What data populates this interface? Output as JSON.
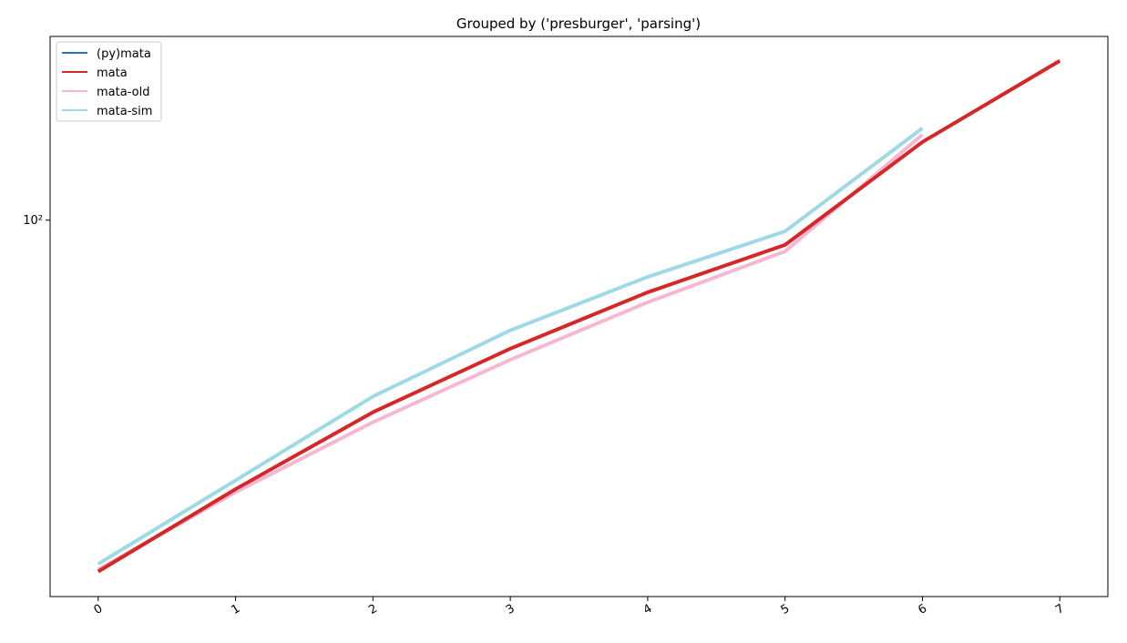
{
  "chart_data": {
    "type": "line",
    "title": "Grouped by ('presburger', 'parsing')",
    "x": [
      0,
      1,
      2,
      3,
      4,
      5,
      6,
      7
    ],
    "xlim": [
      -0.35,
      7.35
    ],
    "xticks": [
      0,
      1,
      2,
      3,
      4,
      5,
      6,
      7
    ],
    "ylim": [
      30,
      180
    ],
    "yticks": [
      {
        "value": 100,
        "label": "10²"
      }
    ],
    "log_y": true,
    "legend": "upper left",
    "series": [
      {
        "name": "(py)mata",
        "color": "#1f77b4",
        "values": [
          null,
          null,
          null,
          null,
          null,
          null,
          null,
          null
        ]
      },
      {
        "name": "mata",
        "color": "#d62728",
        "values": [
          32.5,
          42.3,
          54.1,
          66.3,
          79.4,
          92.4,
          128.4,
          166.5
        ]
      },
      {
        "name": "mata-old",
        "color": "#f7b6d2",
        "values": [
          32.7,
          41.9,
          52.4,
          64.0,
          76.9,
          90.5,
          131.5,
          null
        ]
      },
      {
        "name": "mata-sim",
        "color": "#9edae5",
        "values": [
          33.3,
          43.5,
          56.9,
          70.3,
          83.4,
          96.5,
          134.2,
          null
        ]
      }
    ]
  }
}
